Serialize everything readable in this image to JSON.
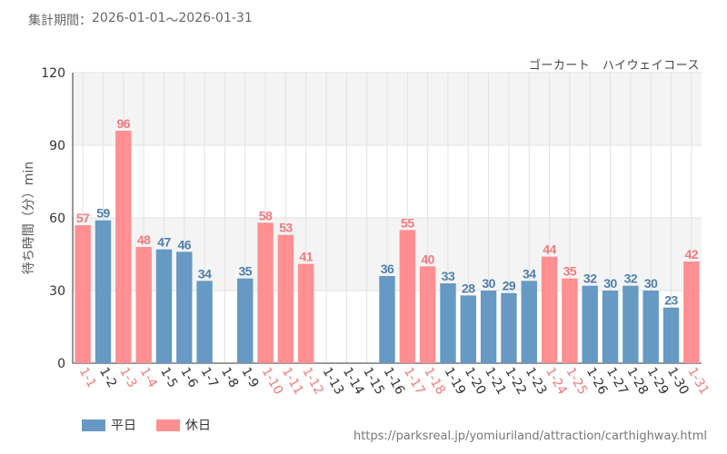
{
  "header": {
    "period_label": "集計期間：",
    "period_start": "2026-01-01",
    "period_sep": "～",
    "period_end": "2026-01-31",
    "subtitle": "ゴーカート　ハイウェイコース"
  },
  "footer": {
    "source_url": "https://parksreal.jp/yomiuriland/attraction/carthighway.html"
  },
  "legend": {
    "weekday_label": "平日",
    "holiday_label": "休日"
  },
  "colors": {
    "weekday": "#6699c4",
    "holiday": "#ff8f91",
    "weekday_text": "#4f7fae",
    "holiday_text": "#f07a7c",
    "band": "#f4f4f4",
    "grid": "#e2e2e2"
  },
  "chart_data": {
    "type": "bar",
    "title": "ゴーカート　ハイウェイコース",
    "ylabel": "待ち時間（分）min",
    "xlabel": "",
    "ylim": [
      0,
      120
    ],
    "yticks": [
      0,
      30,
      60,
      90,
      120
    ],
    "categories": [
      "1-1",
      "1-2",
      "1-3",
      "1-4",
      "1-5",
      "1-6",
      "1-7",
      "1-8",
      "1-9",
      "1-10",
      "1-11",
      "1-12",
      "1-13",
      "1-14",
      "1-15",
      "1-16",
      "1-17",
      "1-18",
      "1-19",
      "1-20",
      "1-21",
      "1-22",
      "1-23",
      "1-24",
      "1-25",
      "1-26",
      "1-27",
      "1-28",
      "1-29",
      "1-30",
      "1-31"
    ],
    "values": [
      57,
      59,
      96,
      48,
      47,
      46,
      34,
      null,
      35,
      58,
      53,
      41,
      null,
      null,
      null,
      36,
      55,
      40,
      33,
      28,
      30,
      29,
      34,
      44,
      35,
      32,
      30,
      32,
      30,
      23,
      42
    ],
    "day_type": [
      "holiday",
      "weekday",
      "holiday",
      "holiday",
      "weekday",
      "weekday",
      "weekday",
      "weekday",
      "weekday",
      "holiday",
      "holiday",
      "holiday",
      "weekday",
      "weekday",
      "weekday",
      "weekday",
      "holiday",
      "holiday",
      "weekday",
      "weekday",
      "weekday",
      "weekday",
      "weekday",
      "holiday",
      "holiday",
      "weekday",
      "weekday",
      "weekday",
      "weekday",
      "weekday",
      "holiday"
    ],
    "series": [
      {
        "name": "平日",
        "type": "weekday"
      },
      {
        "name": "休日",
        "type": "holiday"
      }
    ]
  }
}
